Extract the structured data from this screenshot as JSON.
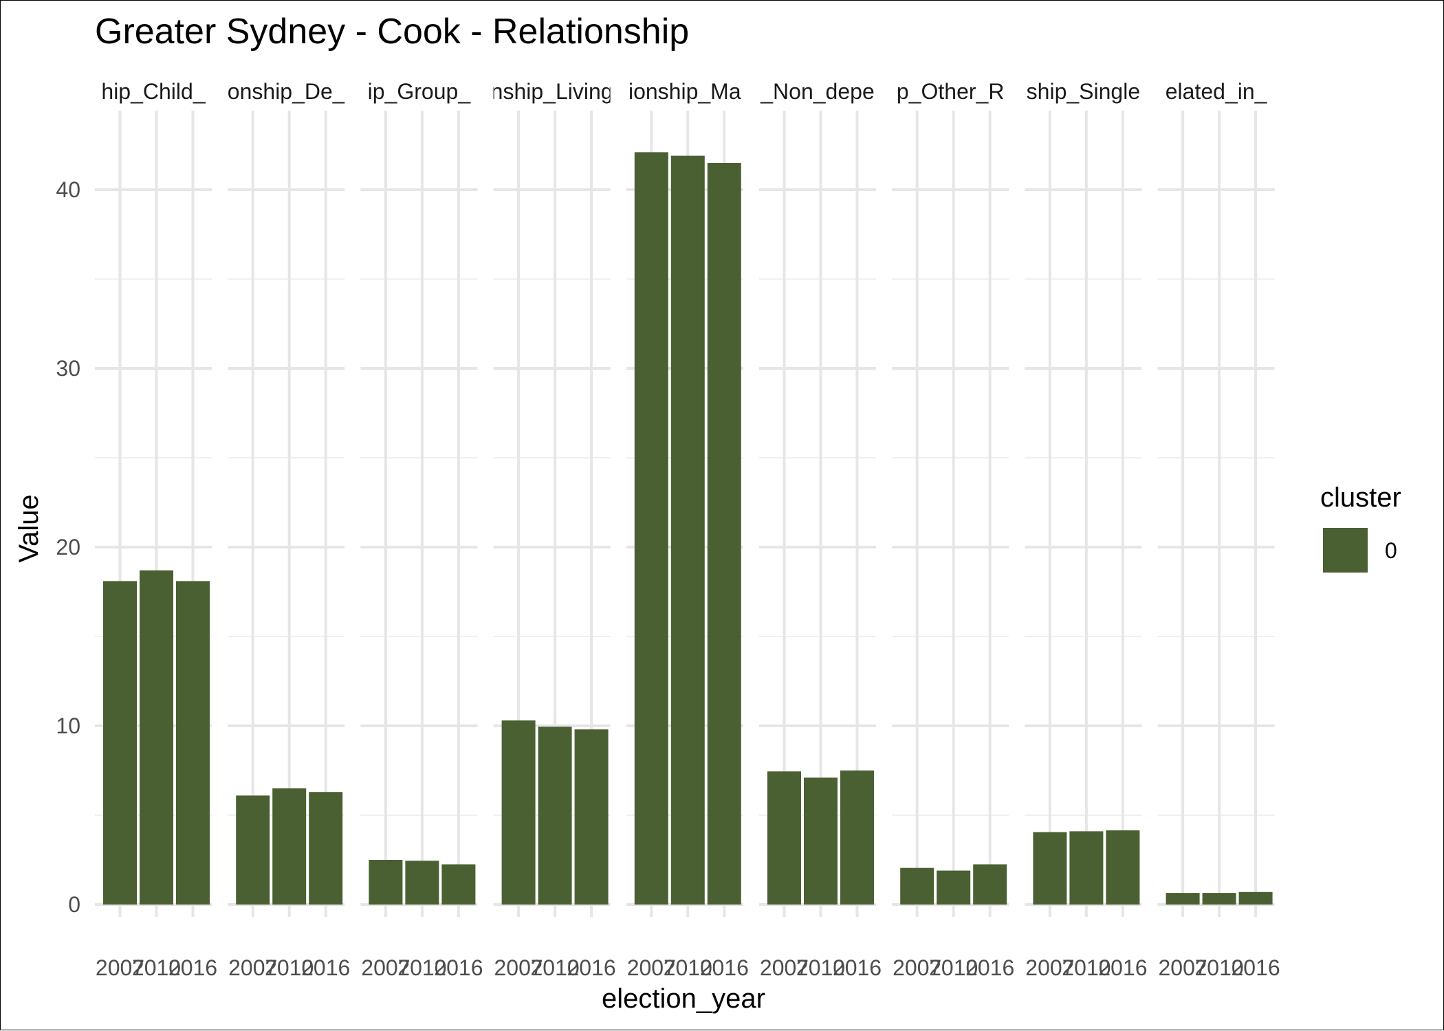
{
  "chart_data": {
    "type": "bar",
    "title": "Greater Sydney - Cook - Relationship",
    "xlabel": "election_year",
    "ylabel": "Value",
    "ylim": [
      0,
      44
    ],
    "yticks": [
      0,
      10,
      20,
      30,
      40
    ],
    "grid": true,
    "facet_labels": [
      "hip_Child_",
      "onship_De_",
      "ip_Group_",
      "nship_Living",
      "ionship_Ma",
      "_Non_depe",
      "p_Other_R",
      "ship_Single",
      "elated_in_"
    ],
    "x": [
      "2007",
      "2010",
      "2016"
    ],
    "x_tick_labels": [
      "2007",
      "2010",
      "2016"
    ],
    "series": [
      {
        "name": "0",
        "color": "#4a6032",
        "values": [
          [
            18.1,
            18.7,
            18.1
          ],
          [
            6.1,
            6.5,
            6.3
          ],
          [
            2.5,
            2.45,
            2.25
          ],
          [
            10.3,
            9.95,
            9.8
          ],
          [
            42.1,
            41.9,
            41.5
          ],
          [
            7.45,
            7.1,
            7.5
          ],
          [
            2.05,
            1.9,
            2.25
          ],
          [
            4.05,
            4.1,
            4.15
          ],
          [
            0.65,
            0.65,
            0.7
          ]
        ]
      }
    ],
    "legend": {
      "title": "cluster",
      "position": "right",
      "entries": [
        "0"
      ]
    }
  }
}
